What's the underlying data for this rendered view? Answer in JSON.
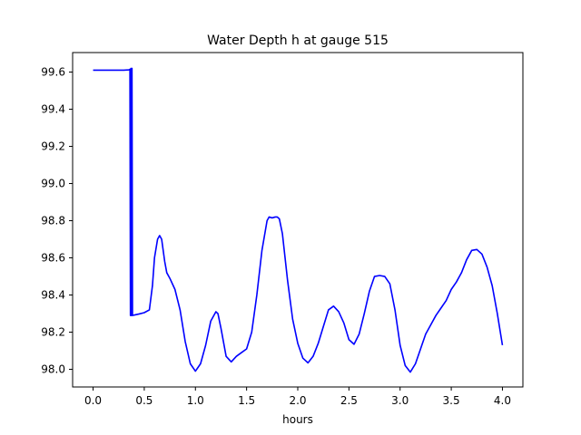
{
  "chart_data": {
    "type": "line",
    "title": "Water Depth h at gauge 515",
    "xlabel": "hours",
    "ylabel": "",
    "xlim": [
      -0.2,
      4.2
    ],
    "ylim": [
      97.905,
      99.705
    ],
    "xticks": [
      0.0,
      0.5,
      1.0,
      1.5,
      2.0,
      2.5,
      3.0,
      3.5,
      4.0
    ],
    "xtick_labels": [
      "0.0",
      "0.5",
      "1.0",
      "1.5",
      "2.0",
      "2.5",
      "3.0",
      "3.5",
      "4.0"
    ],
    "yticks": [
      98.0,
      98.2,
      98.4,
      98.6,
      98.8,
      99.0,
      99.2,
      99.4,
      99.6
    ],
    "ytick_labels": [
      "98.0",
      "98.2",
      "98.4",
      "98.6",
      "98.8",
      "99.0",
      "99.2",
      "99.4",
      "99.6"
    ],
    "grid": false,
    "series": [
      {
        "color": "#0000ff",
        "x": [
          0.0,
          0.1,
          0.2,
          0.3,
          0.35,
          0.36,
          0.365,
          0.37,
          0.375,
          0.38,
          0.385,
          0.37,
          0.38,
          0.4,
          0.45,
          0.5,
          0.55,
          0.58,
          0.6,
          0.63,
          0.65,
          0.67,
          0.7,
          0.72,
          0.75,
          0.8,
          0.85,
          0.9,
          0.95,
          1.0,
          1.05,
          1.1,
          1.15,
          1.2,
          1.22,
          1.25,
          1.3,
          1.35,
          1.4,
          1.45,
          1.5,
          1.55,
          1.6,
          1.65,
          1.7,
          1.72,
          1.75,
          1.78,
          1.8,
          1.82,
          1.85,
          1.9,
          1.95,
          2.0,
          2.05,
          2.1,
          2.15,
          2.2,
          2.25,
          2.3,
          2.35,
          2.4,
          2.45,
          2.5,
          2.55,
          2.6,
          2.65,
          2.7,
          2.75,
          2.8,
          2.85,
          2.9,
          2.95,
          3.0,
          3.05,
          3.1,
          3.15,
          3.2,
          3.25,
          3.3,
          3.35,
          3.4,
          3.45,
          3.5,
          3.55,
          3.6,
          3.65,
          3.7,
          3.75,
          3.8,
          3.85,
          3.9,
          3.95,
          4.0
        ],
        "y": [
          99.61,
          99.61,
          99.61,
          99.61,
          99.612,
          99.615,
          98.29,
          99.62,
          98.29,
          99.62,
          98.29,
          98.29,
          98.29,
          98.292,
          98.298,
          98.305,
          98.32,
          98.45,
          98.6,
          98.7,
          98.72,
          98.7,
          98.58,
          98.52,
          98.49,
          98.43,
          98.32,
          98.15,
          98.03,
          97.99,
          98.03,
          98.13,
          98.26,
          98.31,
          98.3,
          98.22,
          98.07,
          98.04,
          98.07,
          98.09,
          98.11,
          98.2,
          98.4,
          98.64,
          98.8,
          98.82,
          98.815,
          98.82,
          98.82,
          98.81,
          98.73,
          98.48,
          98.27,
          98.14,
          98.06,
          98.035,
          98.07,
          98.14,
          98.23,
          98.32,
          98.34,
          98.31,
          98.25,
          98.16,
          98.135,
          98.19,
          98.3,
          98.42,
          98.5,
          98.505,
          98.5,
          98.46,
          98.32,
          98.13,
          98.02,
          97.985,
          98.03,
          98.11,
          98.19,
          98.24,
          98.29,
          98.33,
          98.37,
          98.43,
          98.47,
          98.52,
          98.59,
          98.64,
          98.645,
          98.62,
          98.55,
          98.45,
          98.3,
          98.13
        ]
      }
    ]
  }
}
